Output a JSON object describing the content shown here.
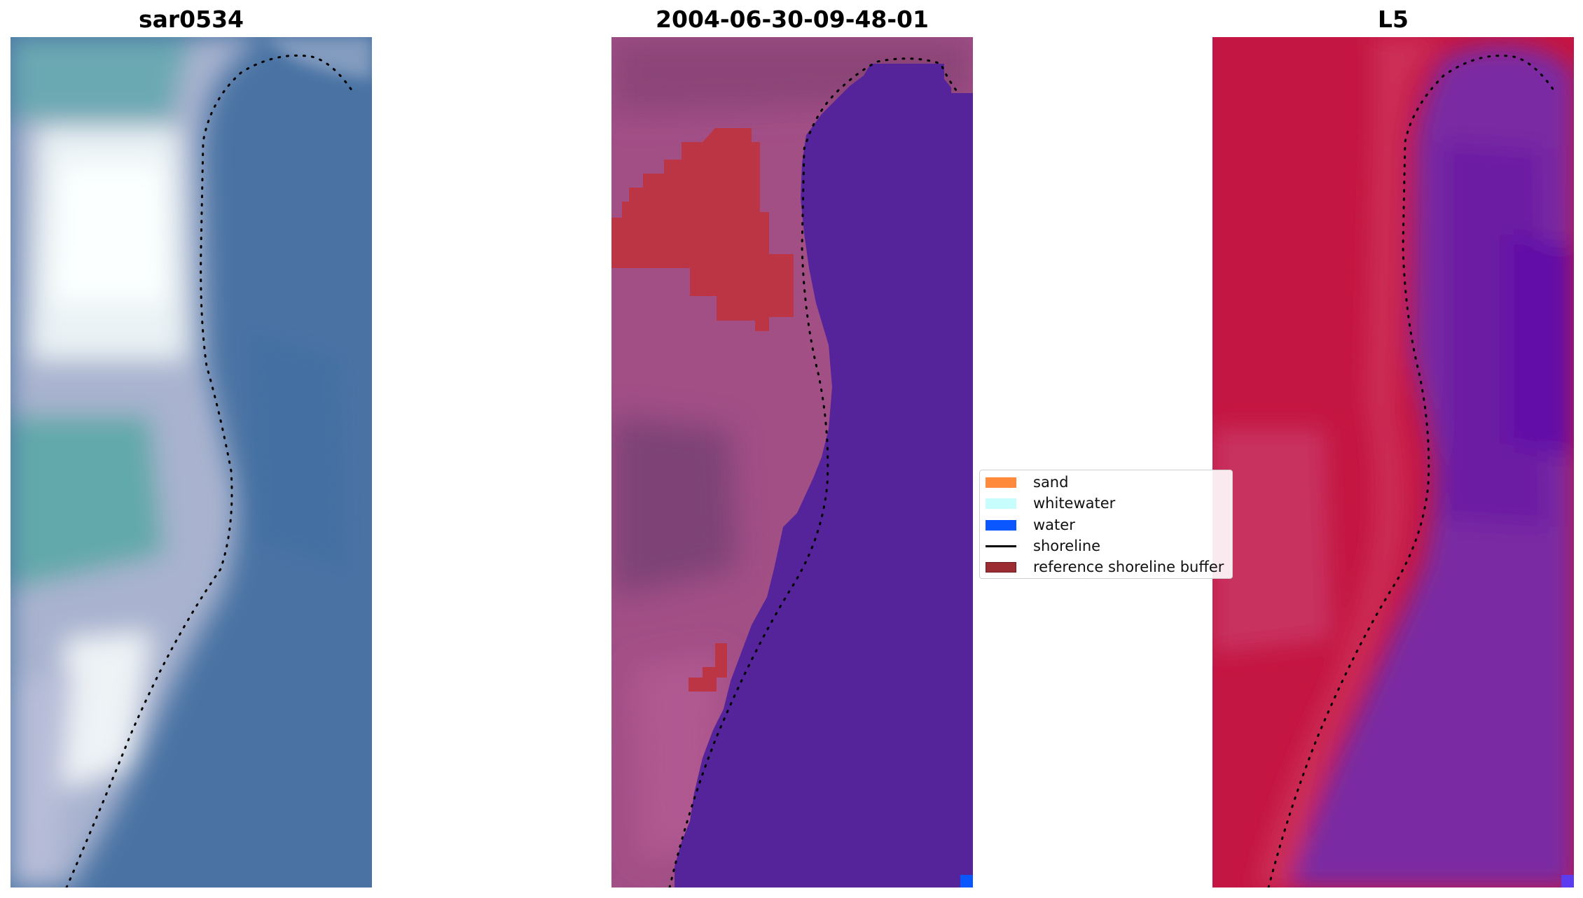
{
  "panels": [
    {
      "title": "sar0534"
    },
    {
      "title": "2004-06-30-09-48-01"
    },
    {
      "title": "L5"
    }
  ],
  "legend": {
    "items": [
      {
        "label": "sand",
        "color": "#ff8a3c",
        "kind": "patch"
      },
      {
        "label": "whitewater",
        "color": "#c8fdfd",
        "kind": "patch"
      },
      {
        "label": "water",
        "color": "#0a56ff",
        "kind": "patch"
      },
      {
        "label": "shoreline",
        "color": "#000000",
        "kind": "line"
      },
      {
        "label": "reference shoreline buffer",
        "color": "#9a2c32",
        "kind": "patch"
      }
    ]
  },
  "colors": {
    "rgb_water": "#4a73a3",
    "rgb_land_light": "#f4fbfb",
    "rgb_teal": "#5fa6ae",
    "classified_water": "#55239a",
    "classified_land": "#a24f86",
    "classified_buffer": "#bc3545",
    "ndwi_land": "#c41642",
    "ndwi_water": "#7a2aa3"
  }
}
